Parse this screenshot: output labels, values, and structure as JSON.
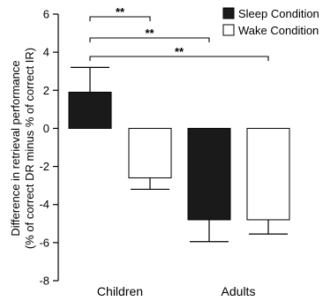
{
  "chart_data": {
    "type": "bar",
    "categories": [
      "Children",
      "Adults"
    ],
    "series": [
      {
        "name": "Sleep Condition",
        "color": "#1a1a1a",
        "values": [
          1.9,
          -4.8
        ],
        "error": [
          1.3,
          1.15
        ]
      },
      {
        "name": "Wake Condition",
        "color": "#ffffff",
        "values": [
          -2.6,
          -4.8
        ],
        "error": [
          0.6,
          0.75
        ]
      }
    ],
    "ylabel_line1": "Difference in retrieval performance",
    "ylabel_line2": "(% of correct DR minus % of correct IR)",
    "ylim": [
      -8,
      6
    ],
    "yticks": [
      "6",
      "4",
      "2",
      "0",
      "-2",
      "-4",
      "-6",
      "-8"
    ],
    "ytick_values": [
      6,
      4,
      2,
      0,
      -2,
      -4,
      -6,
      -8
    ],
    "grid": false,
    "legend": "top-right",
    "significance": [
      {
        "label": "**",
        "from": "Children|Sleep Condition",
        "to": "Children|Wake Condition"
      },
      {
        "label": "**",
        "from": "Children|Sleep Condition",
        "to": "Adults|Sleep Condition"
      },
      {
        "label": "**",
        "from": "Children|Sleep Condition",
        "to": "Adults|Wake Condition"
      }
    ]
  }
}
